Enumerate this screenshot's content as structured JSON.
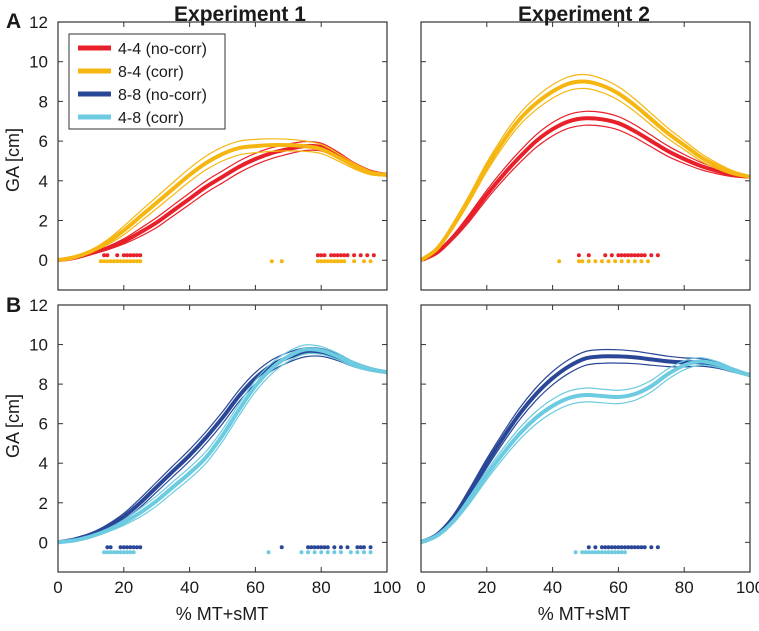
{
  "figure": {
    "panel_labels": [
      "A",
      "B"
    ],
    "column_titles": [
      "Experiment 1",
      "Experiment 2"
    ],
    "xlabel": "% MT+sMT",
    "ylabel": "GA [cm]"
  },
  "legend": [
    {
      "label": "4-4 (no-corr)",
      "color": "#e8202a"
    },
    {
      "label": "8-4 (corr)",
      "color": "#f6b611"
    },
    {
      "label": "8-8 (no-corr)",
      "color": "#2a4797"
    },
    {
      "label": "4-8 (corr)",
      "color": "#6ccbe0"
    }
  ],
  "chart_data": [
    {
      "type": "line",
      "title": "Experiment 1",
      "panel": "A",
      "xlabel": "",
      "ylabel": "GA [cm]",
      "xlim": [
        0,
        100
      ],
      "ylim": [
        -1.5,
        12
      ],
      "xticks": [
        0,
        20,
        40,
        60,
        80,
        100
      ],
      "yticks": [
        0,
        2,
        4,
        6,
        8,
        10,
        12
      ],
      "series": [
        {
          "name": "4-4 (no-corr)",
          "color": "#e8202a",
          "x": [
            0,
            5,
            10,
            15,
            20,
            25,
            30,
            35,
            40,
            45,
            50,
            55,
            60,
            65,
            70,
            75,
            80,
            85,
            90,
            95,
            100
          ],
          "mean": [
            0,
            0.12,
            0.35,
            0.6,
            0.95,
            1.4,
            1.9,
            2.5,
            3.1,
            3.7,
            4.2,
            4.7,
            5.1,
            5.4,
            5.6,
            5.75,
            5.7,
            5.3,
            4.8,
            4.45,
            4.3
          ],
          "ci": 0.3,
          "markers": {
            "row": 0.25,
            "x": [
              14,
              15,
              18,
              20,
              21,
              22,
              23,
              24,
              25,
              79,
              80,
              81,
              83,
              84,
              85,
              86,
              87,
              88,
              90,
              92,
              94,
              96
            ]
          }
        },
        {
          "name": "8-4 (corr)",
          "color": "#f6b611",
          "x": [
            0,
            5,
            10,
            15,
            20,
            25,
            30,
            35,
            40,
            45,
            50,
            55,
            60,
            65,
            70,
            75,
            80,
            85,
            90,
            95,
            100
          ],
          "mean": [
            0,
            0.15,
            0.45,
            0.9,
            1.5,
            2.2,
            2.9,
            3.6,
            4.3,
            4.9,
            5.35,
            5.65,
            5.75,
            5.8,
            5.8,
            5.75,
            5.6,
            5.2,
            4.75,
            4.4,
            4.3
          ],
          "ci": 0.35,
          "markers": {
            "row": -0.05,
            "x": [
              13,
              14,
              15,
              16,
              17,
              18,
              19,
              20,
              21,
              22,
              23,
              24,
              25,
              65,
              68,
              79,
              80,
              81,
              82,
              83,
              84,
              85,
              86,
              87,
              90,
              93,
              95
            ]
          }
        }
      ]
    },
    {
      "type": "line",
      "title": "Experiment 2",
      "panel": "A",
      "xlabel": "",
      "ylabel": "",
      "xlim": [
        0,
        100
      ],
      "ylim": [
        -1.5,
        12
      ],
      "xticks": [
        0,
        20,
        40,
        60,
        80,
        100
      ],
      "yticks": [
        0,
        2,
        4,
        6,
        8,
        10,
        12
      ],
      "series": [
        {
          "name": "4-4 (no-corr)",
          "color": "#e8202a",
          "x": [
            0,
            5,
            10,
            15,
            20,
            25,
            30,
            35,
            40,
            45,
            50,
            55,
            60,
            65,
            70,
            75,
            80,
            85,
            90,
            95,
            100
          ],
          "mean": [
            0,
            0.4,
            1.2,
            2.2,
            3.3,
            4.3,
            5.2,
            6.0,
            6.6,
            7.0,
            7.15,
            7.1,
            6.9,
            6.5,
            6.0,
            5.5,
            5.1,
            4.75,
            4.5,
            4.3,
            4.2
          ],
          "ci": 0.35,
          "markers": {
            "row": 0.25,
            "x": [
              48,
              51,
              56,
              58,
              60,
              61,
              62,
              63,
              64,
              65,
              66,
              67,
              68,
              70,
              72
            ]
          }
        },
        {
          "name": "8-4 (corr)",
          "color": "#f6b611",
          "x": [
            0,
            5,
            10,
            15,
            20,
            25,
            30,
            35,
            40,
            45,
            50,
            55,
            60,
            65,
            70,
            75,
            80,
            85,
            90,
            95,
            100
          ],
          "mean": [
            0,
            0.6,
            1.8,
            3.2,
            4.7,
            6.0,
            7.1,
            7.9,
            8.5,
            8.9,
            9.0,
            8.8,
            8.4,
            7.8,
            7.1,
            6.4,
            5.8,
            5.2,
            4.75,
            4.4,
            4.2
          ],
          "ci": 0.35,
          "markers": {
            "row": -0.05,
            "x": [
              42,
              48,
              49,
              51,
              53,
              55,
              57,
              59,
              61,
              63,
              65,
              67,
              69
            ]
          }
        }
      ]
    },
    {
      "type": "line",
      "title": "",
      "panel": "B",
      "xlabel": "% MT+sMT",
      "ylabel": "GA [cm]",
      "xlim": [
        0,
        100
      ],
      "ylim": [
        -1.5,
        12
      ],
      "xticks": [
        0,
        20,
        40,
        60,
        80,
        100
      ],
      "yticks": [
        0,
        2,
        4,
        6,
        8,
        10,
        12
      ],
      "series": [
        {
          "name": "8-8 (no-corr)",
          "color": "#2a4797",
          "x": [
            0,
            5,
            10,
            15,
            20,
            25,
            30,
            35,
            40,
            45,
            50,
            55,
            60,
            65,
            70,
            75,
            80,
            85,
            90,
            95,
            100
          ],
          "mean": [
            0,
            0.15,
            0.4,
            0.8,
            1.3,
            2.0,
            2.8,
            3.6,
            4.4,
            5.3,
            6.3,
            7.4,
            8.3,
            8.95,
            9.35,
            9.6,
            9.6,
            9.35,
            9.0,
            8.75,
            8.6
          ],
          "ci": 0.3,
          "markers": {
            "row": -0.25,
            "x": [
              15,
              16,
              19,
              20,
              21,
              22,
              23,
              24,
              25,
              68,
              76,
              77,
              78,
              79,
              80,
              81,
              82,
              84,
              86,
              88,
              91,
              92,
              93,
              95
            ]
          }
        },
        {
          "name": "4-8 (corr)",
          "color": "#6ccbe0",
          "x": [
            0,
            5,
            10,
            15,
            20,
            25,
            30,
            35,
            40,
            45,
            50,
            55,
            60,
            65,
            70,
            75,
            80,
            85,
            90,
            95,
            100
          ],
          "mean": [
            0,
            0.1,
            0.3,
            0.6,
            1.0,
            1.5,
            2.1,
            2.8,
            3.5,
            4.3,
            5.4,
            6.7,
            7.9,
            8.8,
            9.4,
            9.75,
            9.7,
            9.4,
            9.0,
            8.75,
            8.6
          ],
          "ci": 0.3,
          "markers": {
            "row": -0.5,
            "x": [
              14,
              15,
              16,
              17,
              18,
              19,
              20,
              21,
              22,
              23,
              64,
              74,
              76,
              78,
              80,
              82,
              84,
              86,
              89,
              91,
              93,
              95
            ]
          }
        }
      ]
    },
    {
      "type": "line",
      "title": "",
      "panel": "B",
      "xlabel": "% MT+sMT",
      "ylabel": "",
      "xlim": [
        0,
        100
      ],
      "ylim": [
        -1.5,
        12
      ],
      "xticks": [
        0,
        20,
        40,
        60,
        80,
        100
      ],
      "yticks": [
        0,
        2,
        4,
        6,
        8,
        10,
        12
      ],
      "series": [
        {
          "name": "8-8 (no-corr)",
          "color": "#2a4797",
          "x": [
            0,
            5,
            10,
            15,
            20,
            25,
            30,
            35,
            40,
            45,
            50,
            55,
            60,
            65,
            70,
            75,
            80,
            85,
            90,
            95,
            100
          ],
          "mean": [
            0,
            0.4,
            1.3,
            2.6,
            4.0,
            5.3,
            6.5,
            7.5,
            8.3,
            8.9,
            9.3,
            9.4,
            9.4,
            9.35,
            9.25,
            9.15,
            9.1,
            9.1,
            8.95,
            8.7,
            8.45
          ],
          "ci": 0.35,
          "markers": {
            "row": -0.25,
            "x": [
              51,
              53,
              55,
              56,
              57,
              58,
              59,
              60,
              61,
              62,
              63,
              64,
              65,
              66,
              67,
              68,
              70,
              72
            ]
          }
        },
        {
          "name": "4-8 (corr)",
          "color": "#6ccbe0",
          "x": [
            0,
            5,
            10,
            15,
            20,
            25,
            30,
            35,
            40,
            45,
            50,
            55,
            60,
            65,
            70,
            75,
            80,
            85,
            90,
            95,
            100
          ],
          "mean": [
            0,
            0.35,
            1.1,
            2.2,
            3.4,
            4.5,
            5.5,
            6.3,
            6.9,
            7.3,
            7.45,
            7.4,
            7.35,
            7.5,
            7.9,
            8.5,
            8.95,
            9.15,
            9.0,
            8.7,
            8.45
          ],
          "ci": 0.35,
          "markers": {
            "row": -0.5,
            "x": [
              47,
              49,
              50,
              51,
              52,
              53,
              54,
              55,
              56,
              57,
              58,
              59,
              60,
              61,
              62
            ]
          }
        }
      ]
    }
  ]
}
